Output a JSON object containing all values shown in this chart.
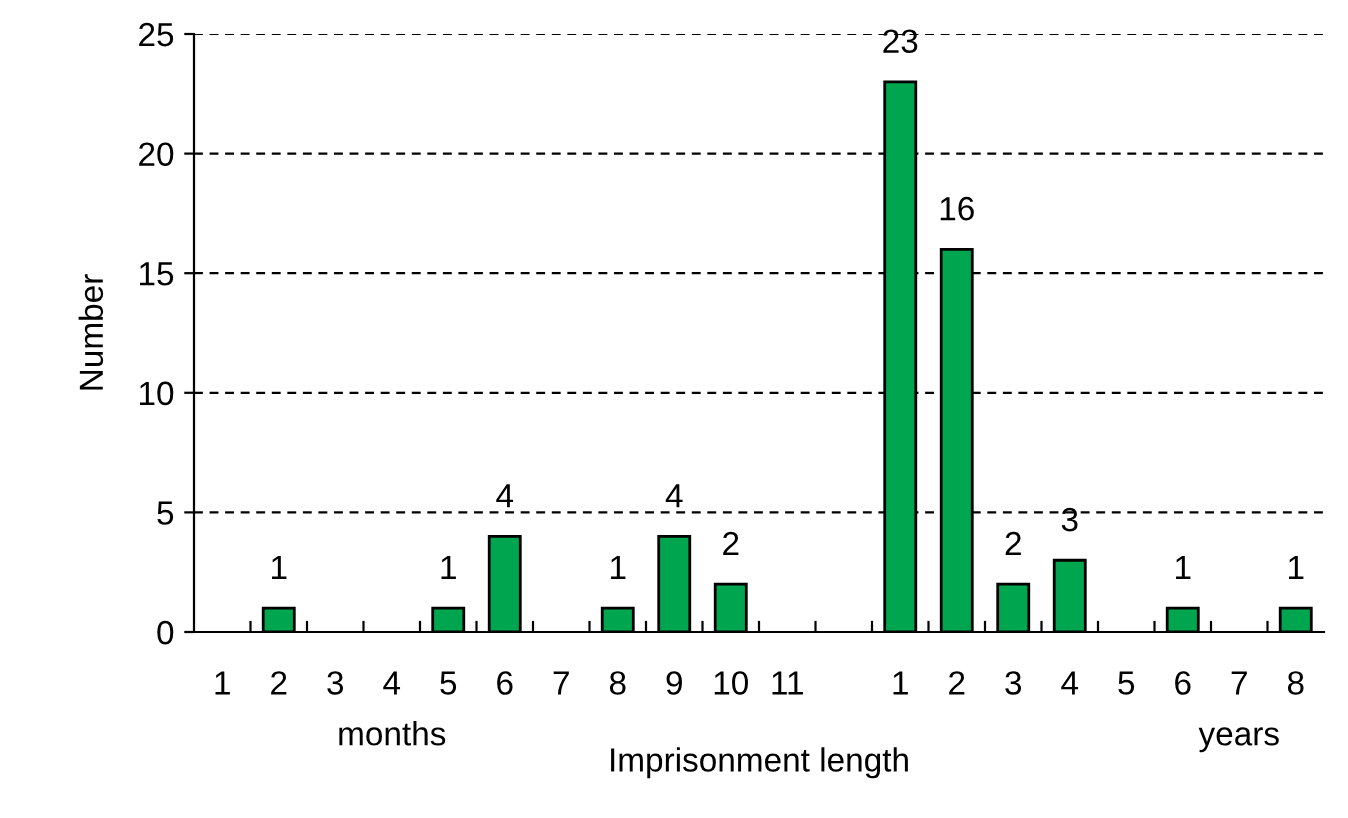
{
  "chart_data": {
    "type": "bar",
    "xlabel": "Imprisonment length",
    "ylabel": "Number",
    "categories": [
      "1",
      "2",
      "3",
      "4",
      "5",
      "6",
      "7",
      "8",
      "9",
      "10",
      "11",
      null,
      "1",
      "2",
      "3",
      "4",
      "5",
      "6",
      "7",
      "8"
    ],
    "values": [
      0,
      1,
      0,
      0,
      1,
      4,
      0,
      1,
      4,
      2,
      0,
      0,
      23,
      16,
      2,
      3,
      0,
      1,
      0,
      1
    ],
    "value_labels": [
      null,
      "1",
      null,
      null,
      "1",
      "4",
      null,
      "1",
      "4",
      "2",
      null,
      null,
      "23",
      "16",
      "2",
      "3",
      null,
      "1",
      null,
      "1"
    ],
    "color": "#00a550",
    "ylim": [
      0,
      25
    ],
    "yticks": [
      0,
      5,
      10,
      15,
      20,
      25
    ],
    "grid": "y",
    "legend": false,
    "annotations": [
      "months",
      "years"
    ]
  }
}
